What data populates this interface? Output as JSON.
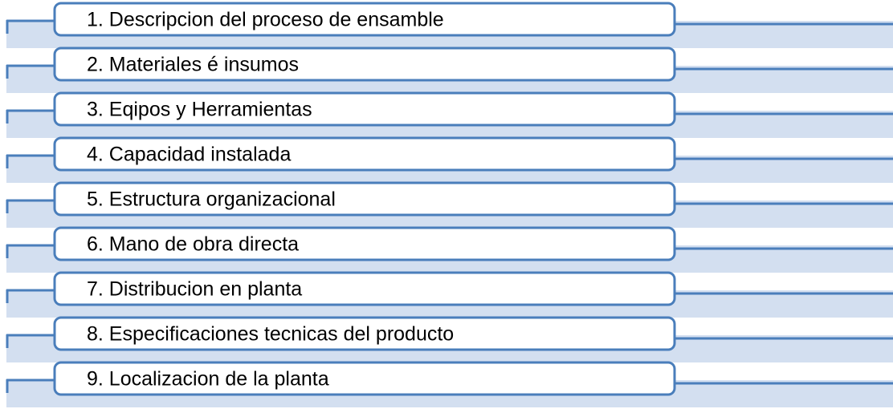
{
  "items": [
    "1. Descripcion del proceso de ensamble",
    "2. Materiales é insumos",
    "3. Eqipos y Herramientas",
    "4. Capacidad instalada",
    "5. Estructura organizacional",
    "6. Mano de obra directa",
    "7. Distribucion en planta",
    "8. Especificaciones tecnicas del producto",
    "9. Localizacion de la planta"
  ]
}
